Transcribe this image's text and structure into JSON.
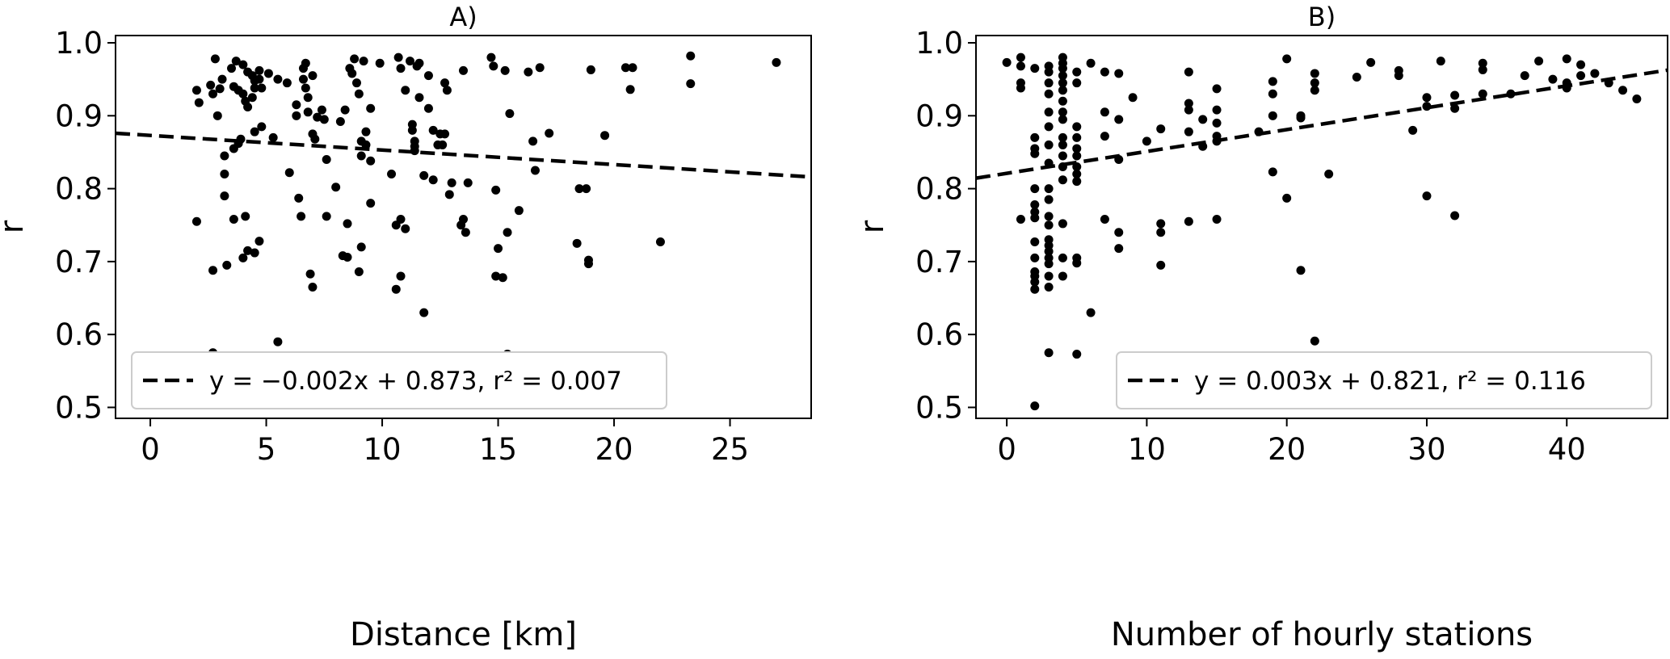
{
  "chart_data": [
    {
      "type": "scatter",
      "title": "A)",
      "xlabel": "Distance [km]",
      "ylabel": "r",
      "xlim": [
        -1.5,
        28.5
      ],
      "ylim": [
        0.485,
        1.01
      ],
      "xticks": [
        0,
        5,
        10,
        15,
        20,
        25
      ],
      "yticks": [
        0.5,
        0.6,
        0.7,
        0.8,
        0.9,
        1.0
      ],
      "ytick_labels": [
        "0.5",
        "0.6",
        "0.7",
        "0.8",
        "0.9",
        "1.0"
      ],
      "grid": false,
      "legend_position": "lower-left",
      "fit": {
        "slope": -0.002,
        "intercept": 0.873
      },
      "legend_label": "y = −0.002x + 0.873, r² = 0.007",
      "points": [
        [
          2.0,
          0.935
        ],
        [
          2.1,
          0.918
        ],
        [
          2.0,
          0.755
        ],
        [
          2.6,
          0.942
        ],
        [
          2.7,
          0.93
        ],
        [
          2.8,
          0.978
        ],
        [
          2.7,
          0.688
        ],
        [
          3.0,
          0.937
        ],
        [
          2.9,
          0.9
        ],
        [
          3.1,
          0.95
        ],
        [
          3.2,
          0.845
        ],
        [
          3.2,
          0.82
        ],
        [
          3.2,
          0.79
        ],
        [
          3.3,
          0.695
        ],
        [
          2.7,
          0.575
        ],
        [
          3.5,
          0.965
        ],
        [
          3.6,
          0.94
        ],
        [
          3.7,
          0.975
        ],
        [
          3.8,
          0.935
        ],
        [
          3.8,
          0.862
        ],
        [
          3.6,
          0.855
        ],
        [
          3.6,
          0.758
        ],
        [
          4.0,
          0.97
        ],
        [
          4.2,
          0.96
        ],
        [
          4.0,
          0.93
        ],
        [
          4.1,
          0.92
        ],
        [
          4.2,
          0.912
        ],
        [
          3.9,
          0.868
        ],
        [
          4.1,
          0.762
        ],
        [
          4.0,
          0.705
        ],
        [
          4.2,
          0.715
        ],
        [
          4.4,
          0.955
        ],
        [
          4.5,
          0.948
        ],
        [
          4.5,
          0.938
        ],
        [
          4.4,
          0.925
        ],
        [
          4.5,
          0.878
        ],
        [
          4.5,
          0.712
        ],
        [
          4.7,
          0.962
        ],
        [
          4.7,
          0.95
        ],
        [
          4.8,
          0.938
        ],
        [
          4.8,
          0.885
        ],
        [
          4.7,
          0.728
        ],
        [
          5.1,
          0.958
        ],
        [
          5.3,
          0.87
        ],
        [
          5.5,
          0.95
        ],
        [
          5.5,
          0.59
        ],
        [
          5.9,
          0.945
        ],
        [
          6.0,
          0.822
        ],
        [
          6.3,
          0.915
        ],
        [
          6.3,
          0.9
        ],
        [
          6.4,
          0.787
        ],
        [
          6.5,
          0.762
        ],
        [
          6.6,
          0.965
        ],
        [
          6.6,
          0.95
        ],
        [
          6.7,
          0.938
        ],
        [
          6.7,
          0.972
        ],
        [
          6.8,
          0.925
        ],
        [
          6.8,
          0.905
        ],
        [
          6.9,
          0.683
        ],
        [
          7.0,
          0.955
        ],
        [
          7.0,
          0.875
        ],
        [
          7.1,
          0.868
        ],
        [
          7.2,
          0.898
        ],
        [
          7.0,
          0.665
        ],
        [
          7.4,
          0.908
        ],
        [
          7.5,
          0.895
        ],
        [
          7.6,
          0.84
        ],
        [
          7.6,
          0.762
        ],
        [
          8.0,
          0.802
        ],
        [
          8.2,
          0.892
        ],
        [
          8.3,
          0.708
        ],
        [
          8.4,
          0.908
        ],
        [
          8.5,
          0.752
        ],
        [
          8.5,
          0.706
        ],
        [
          8.6,
          0.965
        ],
        [
          8.7,
          0.958
        ],
        [
          8.8,
          0.978
        ],
        [
          8.9,
          0.945
        ],
        [
          8.6,
          0.563
        ],
        [
          9.0,
          0.93
        ],
        [
          9.1,
          0.865
        ],
        [
          9.1,
          0.845
        ],
        [
          9.0,
          0.686
        ],
        [
          9.2,
          0.975
        ],
        [
          9.3,
          0.878
        ],
        [
          9.3,
          0.86
        ],
        [
          9.1,
          0.72
        ],
        [
          9.5,
          0.91
        ],
        [
          9.5,
          0.838
        ],
        [
          9.5,
          0.78
        ],
        [
          9.9,
          0.972
        ],
        [
          10.4,
          0.82
        ],
        [
          10.6,
          0.75
        ],
        [
          10.6,
          0.662
        ],
        [
          10.7,
          0.98
        ],
        [
          10.8,
          0.965
        ],
        [
          10.8,
          0.758
        ],
        [
          10.8,
          0.68
        ],
        [
          11.0,
          0.935
        ],
        [
          11.0,
          0.745
        ],
        [
          11.2,
          0.975
        ],
        [
          11.3,
          0.888
        ],
        [
          11.3,
          0.88
        ],
        [
          11.4,
          0.865
        ],
        [
          11.4,
          0.858
        ],
        [
          11.4,
          0.852
        ],
        [
          11.5,
          0.968
        ],
        [
          11.6,
          0.972
        ],
        [
          11.6,
          0.925
        ],
        [
          11.8,
          0.818
        ],
        [
          11.8,
          0.63
        ],
        [
          12.0,
          0.955
        ],
        [
          12.0,
          0.91
        ],
        [
          12.2,
          0.88
        ],
        [
          12.2,
          0.812
        ],
        [
          12.4,
          0.86
        ],
        [
          12.5,
          0.875
        ],
        [
          12.6,
          0.86
        ],
        [
          12.7,
          0.945
        ],
        [
          12.7,
          0.875
        ],
        [
          12.8,
          0.935
        ],
        [
          12.9,
          0.792
        ],
        [
          13.0,
          0.808
        ],
        [
          13.4,
          0.75
        ],
        [
          13.5,
          0.962
        ],
        [
          13.5,
          0.758
        ],
        [
          13.6,
          0.74
        ],
        [
          13.7,
          0.808
        ],
        [
          14.7,
          0.98
        ],
        [
          14.8,
          0.968
        ],
        [
          14.9,
          0.798
        ],
        [
          14.9,
          0.68
        ],
        [
          15.0,
          0.718
        ],
        [
          15.2,
          0.678
        ],
        [
          15.3,
          0.962
        ],
        [
          15.4,
          0.74
        ],
        [
          15.5,
          0.903
        ],
        [
          15.4,
          0.573
        ],
        [
          15.9,
          0.77
        ],
        [
          16.3,
          0.96
        ],
        [
          16.5,
          0.865
        ],
        [
          16.6,
          0.825
        ],
        [
          16.8,
          0.966
        ],
        [
          17.2,
          0.876
        ],
        [
          18.4,
          0.725
        ],
        [
          18.5,
          0.8
        ],
        [
          18.8,
          0.8
        ],
        [
          18.9,
          0.702
        ],
        [
          18.9,
          0.697
        ],
        [
          19.0,
          0.963
        ],
        [
          19.6,
          0.873
        ],
        [
          20.5,
          0.966
        ],
        [
          20.7,
          0.936
        ],
        [
          20.8,
          0.966
        ],
        [
          22.0,
          0.727
        ],
        [
          23.3,
          0.944
        ],
        [
          23.3,
          0.982
        ],
        [
          27.0,
          0.973
        ]
      ]
    },
    {
      "type": "scatter",
      "title": "B)",
      "xlabel": "Number of hourly stations",
      "ylabel": "r",
      "xlim": [
        -2.2,
        47.2
      ],
      "ylim": [
        0.485,
        1.01
      ],
      "xticks": [
        0,
        10,
        20,
        30,
        40
      ],
      "yticks": [
        0.5,
        0.6,
        0.7,
        0.8,
        0.9,
        1.0
      ],
      "ytick_labels": [
        "0.5",
        "0.6",
        "0.7",
        "0.8",
        "0.9",
        "1.0"
      ],
      "grid": false,
      "legend_position": "lower-right",
      "fit": {
        "slope": 0.003,
        "intercept": 0.821
      },
      "legend_label": "y = 0.003x + 0.821, r² = 0.116",
      "points": [
        [
          0,
          0.973
        ],
        [
          1,
          0.98
        ],
        [
          1,
          0.968
        ],
        [
          1,
          0.945
        ],
        [
          1,
          0.938
        ],
        [
          1,
          0.758
        ],
        [
          2,
          0.965
        ],
        [
          2,
          0.87
        ],
        [
          2,
          0.855
        ],
        [
          2,
          0.848
        ],
        [
          2,
          0.8
        ],
        [
          2,
          0.778
        ],
        [
          2,
          0.768
        ],
        [
          2,
          0.76
        ],
        [
          2,
          0.727
        ],
        [
          2,
          0.705
        ],
        [
          2,
          0.686
        ],
        [
          2,
          0.68
        ],
        [
          2,
          0.672
        ],
        [
          2,
          0.662
        ],
        [
          2,
          0.502
        ],
        [
          3,
          0.968
        ],
        [
          3,
          0.96
        ],
        [
          3,
          0.945
        ],
        [
          3,
          0.93
        ],
        [
          3,
          0.905
        ],
        [
          3,
          0.885
        ],
        [
          3,
          0.86
        ],
        [
          3,
          0.835
        ],
        [
          3,
          0.8
        ],
        [
          3,
          0.785
        ],
        [
          3,
          0.762
        ],
        [
          3,
          0.75
        ],
        [
          3,
          0.73
        ],
        [
          3,
          0.722
        ],
        [
          3,
          0.714
        ],
        [
          3,
          0.705
        ],
        [
          3,
          0.697
        ],
        [
          3,
          0.68
        ],
        [
          3,
          0.665
        ],
        [
          3,
          0.575
        ],
        [
          4,
          0.98
        ],
        [
          4,
          0.972
        ],
        [
          4,
          0.965
        ],
        [
          4,
          0.955
        ],
        [
          4,
          0.945
        ],
        [
          4,
          0.935
        ],
        [
          4,
          0.92
        ],
        [
          4,
          0.905
        ],
        [
          4,
          0.895
        ],
        [
          4,
          0.87
        ],
        [
          4,
          0.86
        ],
        [
          4,
          0.845
        ],
        [
          4,
          0.83
        ],
        [
          4,
          0.812
        ],
        [
          4,
          0.752
        ],
        [
          4,
          0.705
        ],
        [
          4,
          0.68
        ],
        [
          5,
          0.96
        ],
        [
          5,
          0.945
        ],
        [
          5,
          0.885
        ],
        [
          5,
          0.87
        ],
        [
          5,
          0.855
        ],
        [
          5,
          0.845
        ],
        [
          5,
          0.83
        ],
        [
          5,
          0.82
        ],
        [
          5,
          0.81
        ],
        [
          5,
          0.705
        ],
        [
          5,
          0.698
        ],
        [
          5,
          0.573
        ],
        [
          6,
          0.972
        ],
        [
          6,
          0.63
        ],
        [
          7,
          0.96
        ],
        [
          7,
          0.905
        ],
        [
          7,
          0.872
        ],
        [
          7,
          0.758
        ],
        [
          8,
          0.958
        ],
        [
          8,
          0.895
        ],
        [
          8,
          0.84
        ],
        [
          8,
          0.74
        ],
        [
          8,
          0.718
        ],
        [
          9,
          0.925
        ],
        [
          10,
          0.865
        ],
        [
          11,
          0.882
        ],
        [
          11,
          0.752
        ],
        [
          11,
          0.74
        ],
        [
          11,
          0.695
        ],
        [
          13,
          0.96
        ],
        [
          13,
          0.917
        ],
        [
          13,
          0.908
        ],
        [
          13,
          0.878
        ],
        [
          13,
          0.755
        ],
        [
          13,
          0.563
        ],
        [
          14,
          0.895
        ],
        [
          14,
          0.858
        ],
        [
          15,
          0.937
        ],
        [
          15,
          0.908
        ],
        [
          15,
          0.89
        ],
        [
          15,
          0.872
        ],
        [
          15,
          0.865
        ],
        [
          15,
          0.758
        ],
        [
          18,
          0.878
        ],
        [
          19,
          0.947
        ],
        [
          19,
          0.93
        ],
        [
          19,
          0.9
        ],
        [
          19,
          0.823
        ],
        [
          20,
          0.978
        ],
        [
          20,
          0.787
        ],
        [
          21,
          0.9
        ],
        [
          21,
          0.897
        ],
        [
          21,
          0.688
        ],
        [
          22,
          0.958
        ],
        [
          22,
          0.945
        ],
        [
          22,
          0.935
        ],
        [
          22,
          0.591
        ],
        [
          23,
          0.82
        ],
        [
          25,
          0.953
        ],
        [
          26,
          0.973
        ],
        [
          28,
          0.962
        ],
        [
          28,
          0.955
        ],
        [
          29,
          0.88
        ],
        [
          30,
          0.925
        ],
        [
          30,
          0.913
        ],
        [
          30,
          0.79
        ],
        [
          31,
          0.975
        ],
        [
          32,
          0.928
        ],
        [
          32,
          0.91
        ],
        [
          32,
          0.763
        ],
        [
          34,
          0.972
        ],
        [
          34,
          0.963
        ],
        [
          34,
          0.93
        ],
        [
          36,
          0.93
        ],
        [
          37,
          0.955
        ],
        [
          38,
          0.975
        ],
        [
          39,
          0.95
        ],
        [
          40,
          0.978
        ],
        [
          40,
          0.945
        ],
        [
          40,
          0.938
        ],
        [
          41,
          0.97
        ],
        [
          41,
          0.955
        ],
        [
          42,
          0.958
        ],
        [
          43,
          0.945
        ],
        [
          44,
          0.935
        ],
        [
          45,
          0.923
        ]
      ]
    }
  ]
}
